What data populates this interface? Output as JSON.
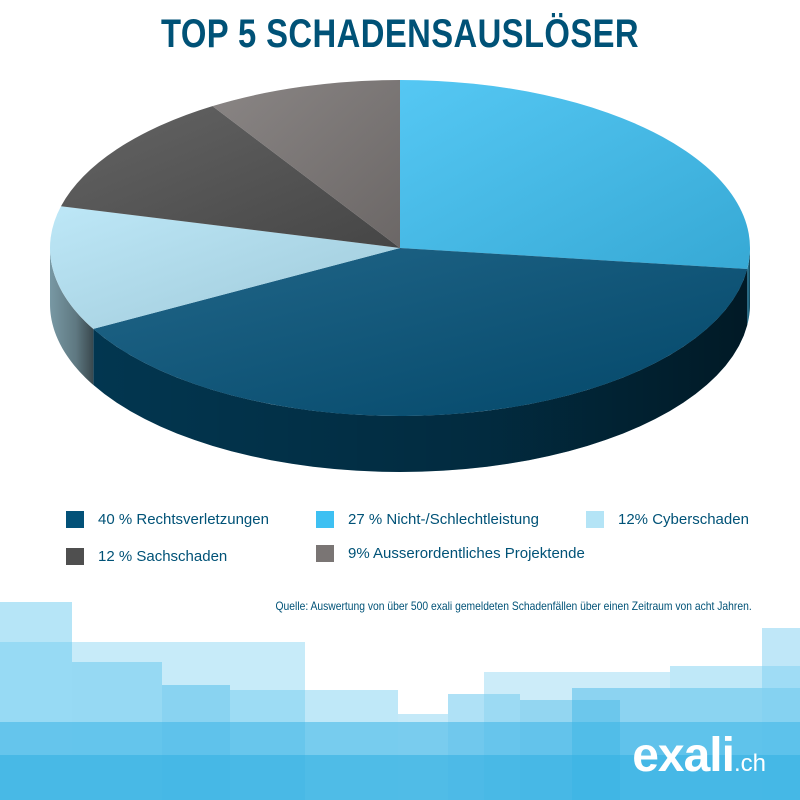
{
  "chart_data": {
    "type": "pie",
    "title": "TOP 5 SCHADENSAUSLÖSER",
    "slices": [
      {
        "label": "Nicht-/Schlechtleistung",
        "legend": "27 % Nicht-/Schlechtleistung",
        "value": 27,
        "color": "#3ec0f2"
      },
      {
        "label": "Rechtsverletzungen",
        "legend": "40 %  Rechtsverletzungen",
        "value": 40,
        "color": "#035178"
      },
      {
        "label": "Cyberschaden",
        "legend": "12% Cyberschaden",
        "value": 12,
        "color": "#b4e4f6"
      },
      {
        "label": "Sachschaden",
        "legend": "12 % Sachschaden",
        "value": 12,
        "color": "#4f4f4f"
      },
      {
        "label": "Ausserordentliches Projektende",
        "legend": "9% Ausserordentliches Projektende",
        "value": 9,
        "color": "#7a7574"
      }
    ]
  },
  "source_note": "Quelle: Auswertung von über 500 exali gemeldeten Schadenfällen über einen Zeitraum von acht Jahren.",
  "logo": {
    "main": "exali",
    "tld": ".ch"
  }
}
